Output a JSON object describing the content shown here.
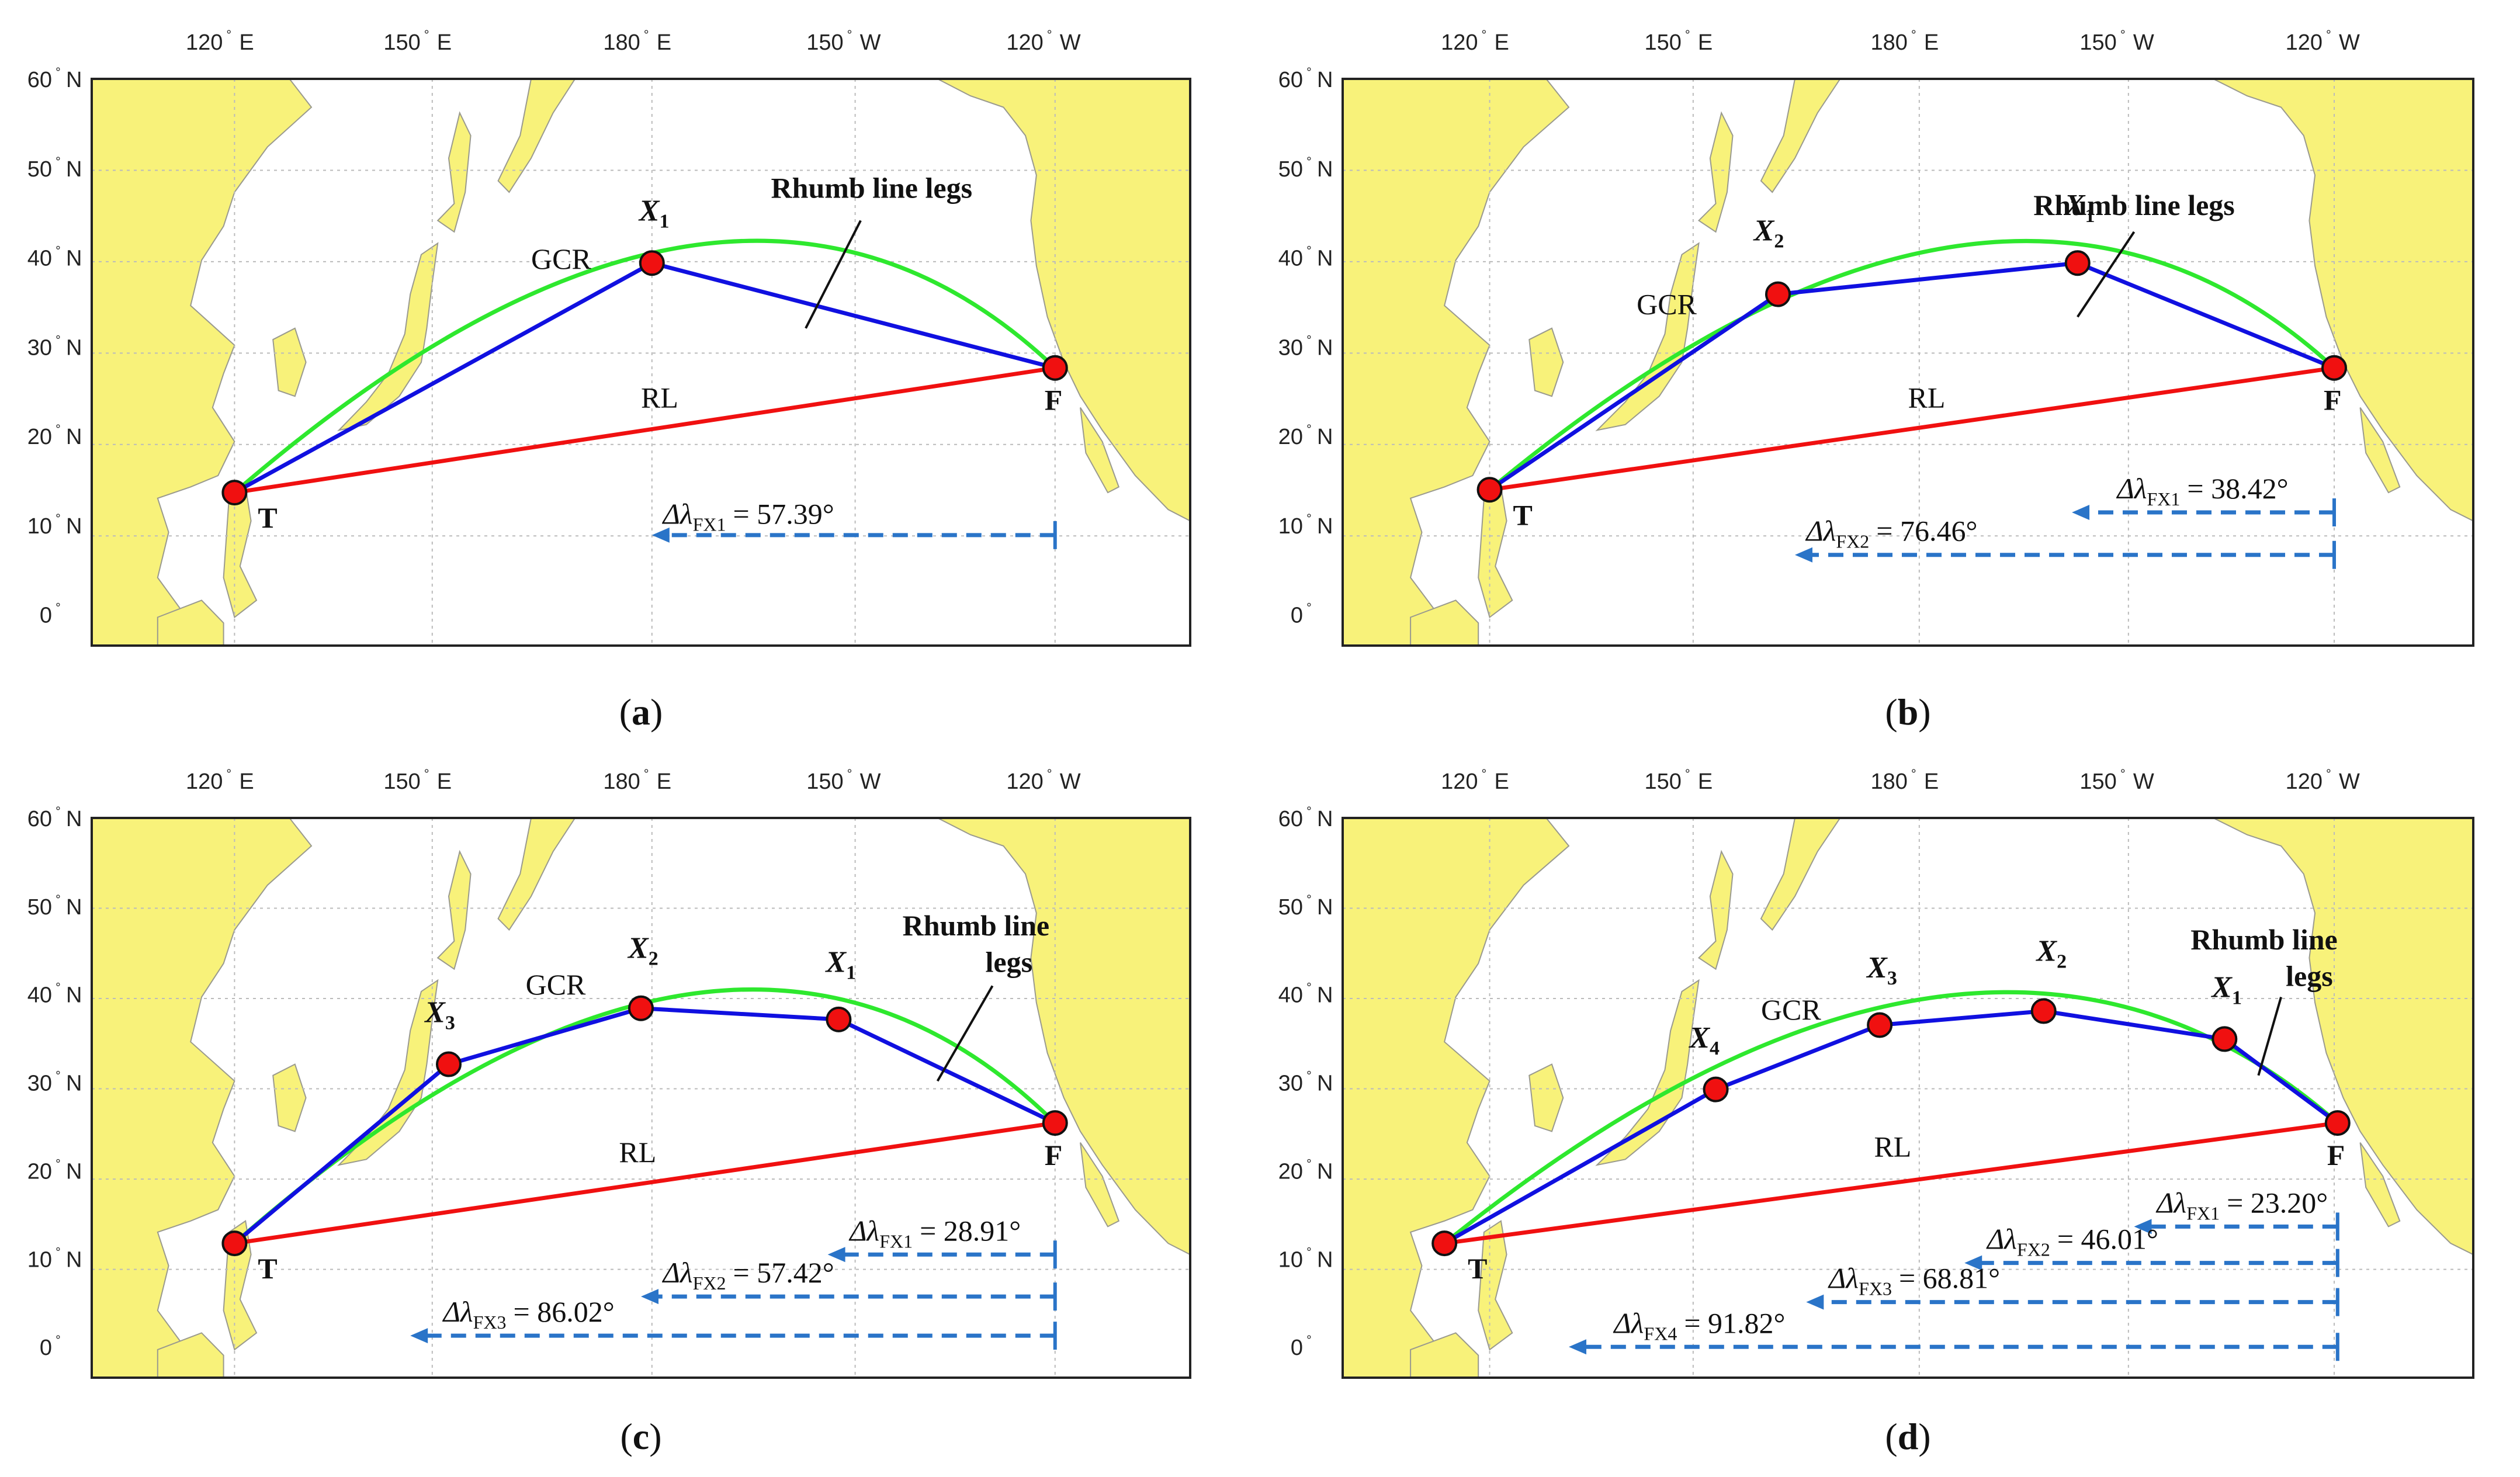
{
  "figure": {
    "panels": [
      {
        "id": "a",
        "caption_letter": "a",
        "lon_ticks": [
          "120",
          "150",
          "180",
          "150",
          "120"
        ],
        "lon_hemis": [
          "E",
          "E",
          "E",
          "W",
          "W"
        ],
        "lat_ticks": [
          "60",
          "50",
          "40",
          "30",
          "20",
          "10",
          "0"
        ],
        "lat_hemis": [
          "N",
          "N",
          "N",
          "N",
          "N",
          "N",
          ""
        ],
        "labels": {
          "gcr": "GCR",
          "rl": "RL",
          "rhumb": [
            "Rhumb line legs"
          ],
          "start": "T",
          "end": "F"
        },
        "waypoints": [
          {
            "name_main": "X",
            "name_sub": "1"
          }
        ],
        "deltas": [
          {
            "prefix": "Δλ",
            "sub": "FX1",
            "value": "= 57.39°"
          }
        ]
      },
      {
        "id": "b",
        "caption_letter": "b",
        "lon_ticks": [
          "120",
          "150",
          "180",
          "150",
          "120"
        ],
        "lon_hemis": [
          "E",
          "E",
          "E",
          "W",
          "W"
        ],
        "lat_ticks": [
          "60",
          "50",
          "40",
          "30",
          "20",
          "10",
          "0"
        ],
        "lat_hemis": [
          "N",
          "N",
          "N",
          "N",
          "N",
          "N",
          ""
        ],
        "labels": {
          "gcr": "GCR",
          "rl": "RL",
          "rhumb": [
            "Rhumb line legs"
          ],
          "start": "T",
          "end": "F"
        },
        "waypoints": [
          {
            "name_main": "X",
            "name_sub": "1"
          },
          {
            "name_main": "X",
            "name_sub": "2"
          }
        ],
        "deltas": [
          {
            "prefix": "Δλ",
            "sub": "FX1",
            "value": "= 38.42°"
          },
          {
            "prefix": "Δλ",
            "sub": "FX2",
            "value": "= 76.46°"
          }
        ]
      },
      {
        "id": "c",
        "caption_letter": "c",
        "lon_ticks": [
          "120",
          "150",
          "180",
          "150",
          "120"
        ],
        "lon_hemis": [
          "E",
          "E",
          "E",
          "W",
          "W"
        ],
        "lat_ticks": [
          "60",
          "50",
          "40",
          "30",
          "20",
          "10",
          "0"
        ],
        "lat_hemis": [
          "N",
          "N",
          "N",
          "N",
          "N",
          "N",
          ""
        ],
        "labels": {
          "gcr": "GCR",
          "rl": "RL",
          "rhumb": [
            "Rhumb line",
            "legs"
          ],
          "start": "T",
          "end": "F"
        },
        "waypoints": [
          {
            "name_main": "X",
            "name_sub": "1"
          },
          {
            "name_main": "X",
            "name_sub": "2"
          },
          {
            "name_main": "X",
            "name_sub": "3"
          }
        ],
        "deltas": [
          {
            "prefix": "Δλ",
            "sub": "FX1",
            "value": "= 28.91°"
          },
          {
            "prefix": "Δλ",
            "sub": "FX2",
            "value": "= 57.42°"
          },
          {
            "prefix": "Δλ",
            "sub": "FX3",
            "value": "= 86.02°"
          }
        ]
      },
      {
        "id": "d",
        "caption_letter": "d",
        "lon_ticks": [
          "120",
          "150",
          "180",
          "150",
          "120"
        ],
        "lon_hemis": [
          "E",
          "E",
          "E",
          "W",
          "W"
        ],
        "lat_ticks": [
          "60",
          "50",
          "40",
          "30",
          "20",
          "10",
          "0"
        ],
        "lat_hemis": [
          "N",
          "N",
          "N",
          "N",
          "N",
          "N",
          ""
        ],
        "labels": {
          "gcr": "GCR",
          "rl": "RL",
          "rhumb": [
            "Rhumb line",
            "legs"
          ],
          "start": "T",
          "end": "F"
        },
        "waypoints": [
          {
            "name_main": "X",
            "name_sub": "1"
          },
          {
            "name_main": "X",
            "name_sub": "2"
          },
          {
            "name_main": "X",
            "name_sub": "3"
          },
          {
            "name_main": "X",
            "name_sub": "4"
          }
        ],
        "deltas": [
          {
            "prefix": "Δλ",
            "sub": "FX1",
            "value": "= 23.20°"
          },
          {
            "prefix": "Δλ",
            "sub": "FX2",
            "value": "= 46.01°"
          },
          {
            "prefix": "Δλ",
            "sub": "FX3",
            "value": "= 68.81°"
          },
          {
            "prefix": "Δλ",
            "sub": "FX4",
            "value": "= 91.82°"
          }
        ]
      }
    ],
    "colors": {
      "land": "#F8F27A",
      "coast": "#9A9A8E",
      "sea": "#FFFFFF",
      "gcr": "#2EE82E",
      "rhumb_legs": "#1010E0",
      "rl": "#F01010",
      "waypoint": "#F01010",
      "delta_arrow": "#2A74C8",
      "grid": "#BBBBBB"
    }
  }
}
